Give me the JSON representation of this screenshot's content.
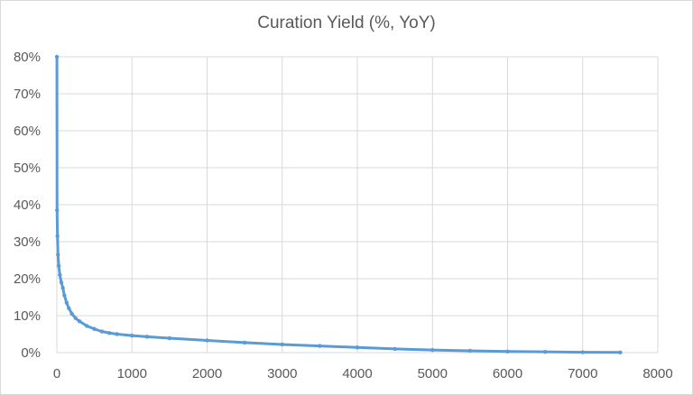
{
  "chart_data": {
    "type": "scatter",
    "title": "Curation Yield (%, YoY)",
    "xlabel": "",
    "ylabel": "",
    "xlim": [
      0,
      8000
    ],
    "ylim": [
      0,
      80
    ],
    "x_ticks": [
      "0",
      "1000",
      "2000",
      "3000",
      "4000",
      "5000",
      "6000",
      "7000",
      "8000"
    ],
    "y_ticks": [
      "0%",
      "10%",
      "20%",
      "30%",
      "40%",
      "50%",
      "60%",
      "70%",
      "80%"
    ],
    "grid": true,
    "legend": "none",
    "marker_color": "#5b9bd5",
    "series": [
      {
        "x": [
          1,
          3,
          8,
          15,
          25,
          40,
          60,
          80,
          100,
          130,
          160,
          200,
          250,
          300,
          400,
          500,
          600,
          700,
          800,
          1000,
          1200,
          1500,
          2000,
          2500,
          3000,
          3500,
          4000,
          4500,
          5000,
          5500,
          6000,
          6500,
          7000,
          7500
        ],
        "y": [
          80,
          38.5,
          31.5,
          26.5,
          23.5,
          21,
          19,
          17.5,
          15.5,
          13.5,
          12,
          10.5,
          9.3,
          8.5,
          7.2,
          6.4,
          5.7,
          5.3,
          5.0,
          4.6,
          4.3,
          3.9,
          3.3,
          2.7,
          2.2,
          1.8,
          1.4,
          1.0,
          0.7,
          0.5,
          0.3,
          0.2,
          0.1,
          0.05
        ]
      }
    ]
  }
}
